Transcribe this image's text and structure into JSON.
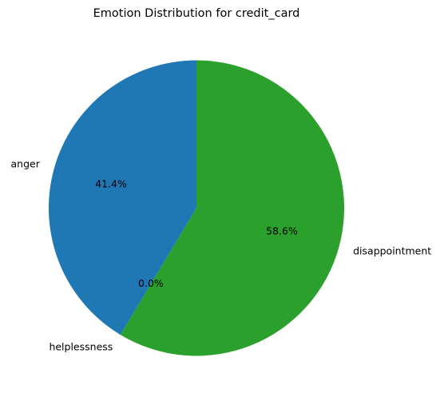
{
  "chart_data": {
    "type": "pie",
    "title": "Emotion Distribution for credit_card",
    "categories": [
      "anger",
      "helplessness",
      "disappointment"
    ],
    "values": [
      41.4,
      0.0,
      58.6
    ],
    "percent_labels": [
      "41.4%",
      "0.0%",
      "58.6%"
    ],
    "colors": [
      "#1f77b4",
      "#ff7f0e",
      "#2ca02c"
    ],
    "start_angle_deg": 90,
    "direction": "counterclockwise",
    "legend": "none"
  }
}
